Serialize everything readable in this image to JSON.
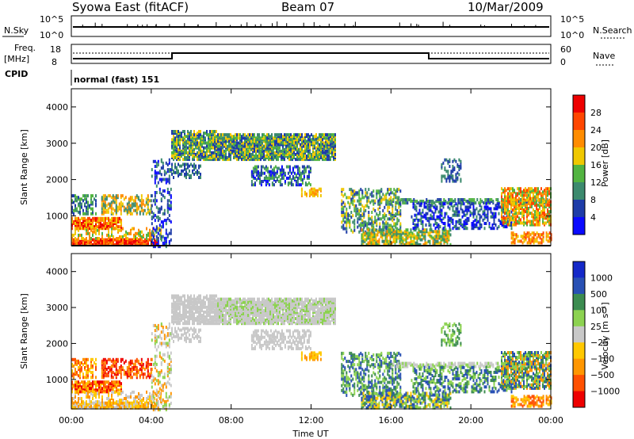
{
  "header": {
    "station": "Syowa East (fitACF)",
    "beam": "Beam 07",
    "date": "10/Mar/2009"
  },
  "strip_nsky": {
    "label": "N.Sky",
    "right_label": "N.Search",
    "ticks": [
      "10^5",
      "10^0"
    ]
  },
  "strip_freq": {
    "label_line1": "Freq.",
    "label_line2": "[MHz]",
    "ticks_left": [
      "18",
      "8"
    ],
    "right_label": "Nave",
    "ticks_right": [
      "60",
      "0"
    ],
    "cpid_label": "CPID",
    "cpid_text": "normal (fast) 151"
  },
  "colors": {
    "power": [
      "#0a0aff",
      "#1e3ca8",
      "#3c8a6e",
      "#52b441",
      "#f0c800",
      "#ff8c00",
      "#ff4600",
      "#ee0000"
    ],
    "velocity": [
      "#ee0000",
      "#ff5000",
      "#ff9600",
      "#ffc800",
      "#c8c8c8",
      "#8cd250",
      "#3c8c50",
      "#2850b4",
      "#1428c8"
    ]
  },
  "chart_data": [
    {
      "type": "heatmap",
      "panel": "power",
      "ylabel": "Slant Range [km]",
      "ylim": [
        180,
        4500
      ],
      "y_ticks": [
        1000,
        2000,
        3000,
        4000
      ],
      "xlim_hours": [
        0,
        24
      ],
      "colorbar": {
        "title": "Power [dB]",
        "levels": [
          "28",
          "24",
          "20",
          "16",
          "12",
          "8",
          "4"
        ]
      }
    },
    {
      "type": "heatmap",
      "panel": "velocity",
      "ylabel": "Slant Range [km]",
      "ylim": [
        180,
        4500
      ],
      "y_ticks": [
        1000,
        2000,
        3000,
        4000
      ],
      "xlim_hours": [
        0,
        24
      ],
      "colorbar": {
        "title": "Velocity [m s⁻¹]",
        "levels": [
          "1000",
          "500",
          "100",
          "25",
          "−25",
          "−100",
          "−500",
          "−1000"
        ]
      },
      "x_ticks": [
        "00:00",
        "04:00",
        "08:00",
        "12:00",
        "16:00",
        "20:00",
        "00:00"
      ],
      "xlabel": "Time UT"
    }
  ]
}
